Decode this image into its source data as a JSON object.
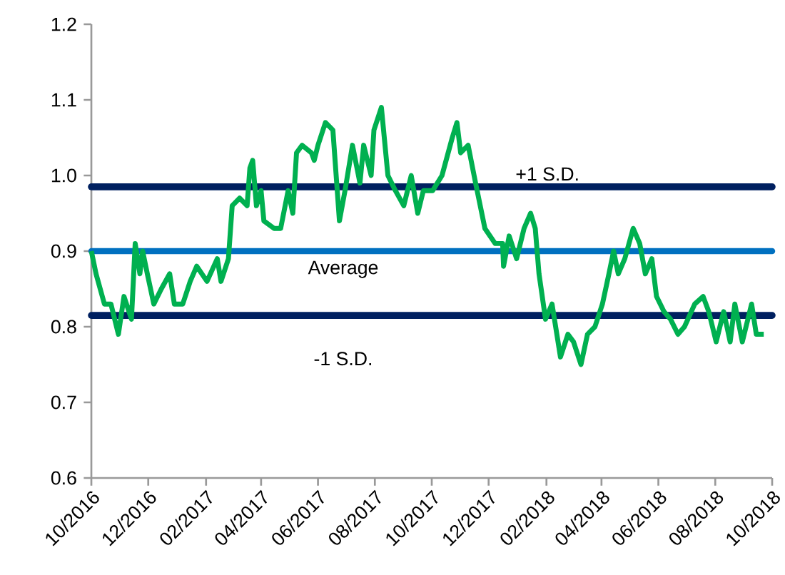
{
  "chart_data": {
    "type": "line",
    "x": [
      "2016-10-01",
      "2016-10-06",
      "2016-10-15",
      "2016-10-22",
      "2016-10-30",
      "2016-11-05",
      "2016-11-13",
      "2016-11-17",
      "2016-11-22",
      "2016-11-25",
      "2016-11-30",
      "2016-12-07",
      "2016-12-15",
      "2016-12-24",
      "2016-12-29",
      "2017-01-07",
      "2017-01-15",
      "2017-01-22",
      "2017-02-02",
      "2017-02-13",
      "2017-02-17",
      "2017-02-25",
      "2017-03-01",
      "2017-03-09",
      "2017-03-17",
      "2017-03-20",
      "2017-03-23",
      "2017-03-27",
      "2017-04-01",
      "2017-04-04",
      "2017-04-15",
      "2017-04-22",
      "2017-04-30",
      "2017-05-05",
      "2017-05-09",
      "2017-05-15",
      "2017-05-25",
      "2017-05-28",
      "2017-06-01",
      "2017-06-09",
      "2017-06-17",
      "2017-06-24",
      "2017-06-30",
      "2017-07-08",
      "2017-07-16",
      "2017-07-20",
      "2017-07-28",
      "2017-07-31",
      "2017-08-08",
      "2017-08-15",
      "2017-08-23",
      "2017-09-01",
      "2017-09-09",
      "2017-09-16",
      "2017-09-22",
      "2017-10-02",
      "2017-10-12",
      "2017-10-23",
      "2017-10-28",
      "2017-11-01",
      "2017-11-09",
      "2017-11-17",
      "2017-11-27",
      "2017-12-08",
      "2017-12-16",
      "2017-12-17",
      "2017-12-23",
      "2017-12-31",
      "2018-01-08",
      "2018-01-15",
      "2018-01-20",
      "2018-01-24",
      "2018-01-31",
      "2018-02-07",
      "2018-02-16",
      "2018-02-24",
      "2018-03-02",
      "2018-03-10",
      "2018-03-17",
      "2018-03-25",
      "2018-04-02",
      "2018-04-09",
      "2018-04-14",
      "2018-04-19",
      "2018-04-26",
      "2018-05-05",
      "2018-05-12",
      "2018-05-18",
      "2018-05-25",
      "2018-05-30",
      "2018-06-07",
      "2018-06-14",
      "2018-06-22",
      "2018-06-29",
      "2018-07-10",
      "2018-07-19",
      "2018-07-25",
      "2018-08-02",
      "2018-08-10",
      "2018-08-17",
      "2018-08-22",
      "2018-08-30",
      "2018-09-09",
      "2018-09-14",
      "2018-09-22"
    ],
    "series": [
      {
        "color": "#00b050",
        "values": [
          0.9,
          0.87,
          0.83,
          0.83,
          0.79,
          0.84,
          0.81,
          0.91,
          0.87,
          0.9,
          0.87,
          0.83,
          0.85,
          0.87,
          0.83,
          0.83,
          0.86,
          0.88,
          0.86,
          0.89,
          0.86,
          0.89,
          0.96,
          0.97,
          0.96,
          1.01,
          1.02,
          0.96,
          0.98,
          0.94,
          0.93,
          0.93,
          0.98,
          0.95,
          1.03,
          1.04,
          1.03,
          1.02,
          1.04,
          1.07,
          1.06,
          0.94,
          0.98,
          1.04,
          0.99,
          1.04,
          1.0,
          1.06,
          1.09,
          1.0,
          0.98,
          0.96,
          1.0,
          0.95,
          0.98,
          0.98,
          1.0,
          1.05,
          1.07,
          1.03,
          1.04,
          0.99,
          0.93,
          0.91,
          0.91,
          0.88,
          0.92,
          0.89,
          0.93,
          0.95,
          0.93,
          0.87,
          0.81,
          0.83,
          0.76,
          0.79,
          0.78,
          0.75,
          0.79,
          0.8,
          0.83,
          0.87,
          0.9,
          0.87,
          0.89,
          0.93,
          0.91,
          0.87,
          0.89,
          0.84,
          0.82,
          0.81,
          0.79,
          0.8,
          0.83,
          0.84,
          0.82,
          0.78,
          0.82,
          0.78,
          0.83,
          0.78,
          0.83,
          0.79,
          0.79
        ]
      }
    ],
    "xlim": [
      "2016-10-01",
      "2018-10-01"
    ],
    "xticks": [
      {
        "value": "2016-10",
        "label": "10/2016"
      },
      {
        "value": "2016-12",
        "label": "12/2016"
      },
      {
        "value": "2017-02",
        "label": "02/2017"
      },
      {
        "value": "2017-04",
        "label": "04/2017"
      },
      {
        "value": "2017-06",
        "label": "06/2017"
      },
      {
        "value": "2017-08",
        "label": "08/2017"
      },
      {
        "value": "2017-10",
        "label": "10/2017"
      },
      {
        "value": "2017-12",
        "label": "12/2017"
      },
      {
        "value": "2018-02",
        "label": "02/2018"
      },
      {
        "value": "2018-04",
        "label": "04/2018"
      },
      {
        "value": "2018-06",
        "label": "06/2018"
      },
      {
        "value": "2018-08",
        "label": "08/2018"
      },
      {
        "value": "2018-10",
        "label": "10/2018"
      }
    ],
    "ylim": [
      0.6,
      1.2
    ],
    "yticks": [
      {
        "value": 0.6,
        "label": "0.6"
      },
      {
        "value": 0.7,
        "label": "0.7"
      },
      {
        "value": 0.8,
        "label": "0.8"
      },
      {
        "value": 0.9,
        "label": "0.9"
      },
      {
        "value": 1.0,
        "label": "1.0"
      },
      {
        "value": 1.1,
        "label": "1.1"
      },
      {
        "value": 1.2,
        "label": "1.2"
      }
    ],
    "ref_lines": [
      {
        "axis": "y",
        "value": 0.985,
        "label": "+1 S.D.",
        "color": "#002060"
      },
      {
        "axis": "y",
        "value": 0.9,
        "label": "Average",
        "color": "#0070c0"
      },
      {
        "axis": "y",
        "value": 0.815,
        "label": "-1 S.D.",
        "color": "#002060"
      }
    ],
    "grid": false,
    "legend": false,
    "marker": "none",
    "line_style": "solid"
  }
}
